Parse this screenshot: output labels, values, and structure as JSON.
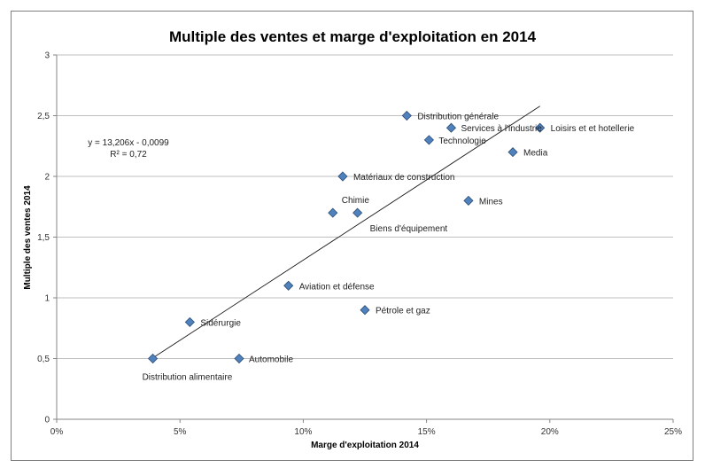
{
  "chart_data": {
    "type": "scatter",
    "title": "Multiple des ventes et marge d'exploitation en 2014",
    "xlabel": "Marge d'exploitation 2014",
    "ylabel": "Multiple des ventes 2014",
    "xlim": [
      0,
      0.25
    ],
    "ylim": [
      0,
      3
    ],
    "x_ticks": [
      "0%",
      "5%",
      "10%",
      "15%",
      "20%",
      "25%"
    ],
    "y_ticks": [
      "0",
      "0,5",
      "1",
      "1,5",
      "2",
      "2,5",
      "3"
    ],
    "grid": "horizontal",
    "marker_color": "#4f81bd",
    "points": [
      {
        "label": "Distribution alimentaire",
        "x": 0.039,
        "y": 0.5
      },
      {
        "label": "Sidérurgie",
        "x": 0.054,
        "y": 0.8
      },
      {
        "label": "Automobile",
        "x": 0.074,
        "y": 0.5
      },
      {
        "label": "Aviation et défense",
        "x": 0.094,
        "y": 1.1
      },
      {
        "label": "Chimie",
        "x": 0.112,
        "y": 1.7
      },
      {
        "label": "Biens d'équipement",
        "x": 0.122,
        "y": 1.7
      },
      {
        "label": "Matériaux de construction",
        "x": 0.116,
        "y": 2.0
      },
      {
        "label": "Pétrole et gaz",
        "x": 0.125,
        "y": 0.9
      },
      {
        "label": "Distribution générale",
        "x": 0.142,
        "y": 2.5
      },
      {
        "label": "Technologie",
        "x": 0.151,
        "y": 2.3
      },
      {
        "label": "Services à l'industrie",
        "x": 0.16,
        "y": 2.4
      },
      {
        "label": "Mines",
        "x": 0.167,
        "y": 1.8
      },
      {
        "label": "Media",
        "x": 0.185,
        "y": 2.2
      },
      {
        "label": "Loisirs et et hotellerie",
        "x": 0.196,
        "y": 2.4
      }
    ],
    "trendline": {
      "equation": "y = 13,206x - 0,0099",
      "r2": "R² = 0,72",
      "slope": 13.206,
      "intercept": -0.0099,
      "x_range": [
        0.039,
        0.196
      ]
    }
  }
}
